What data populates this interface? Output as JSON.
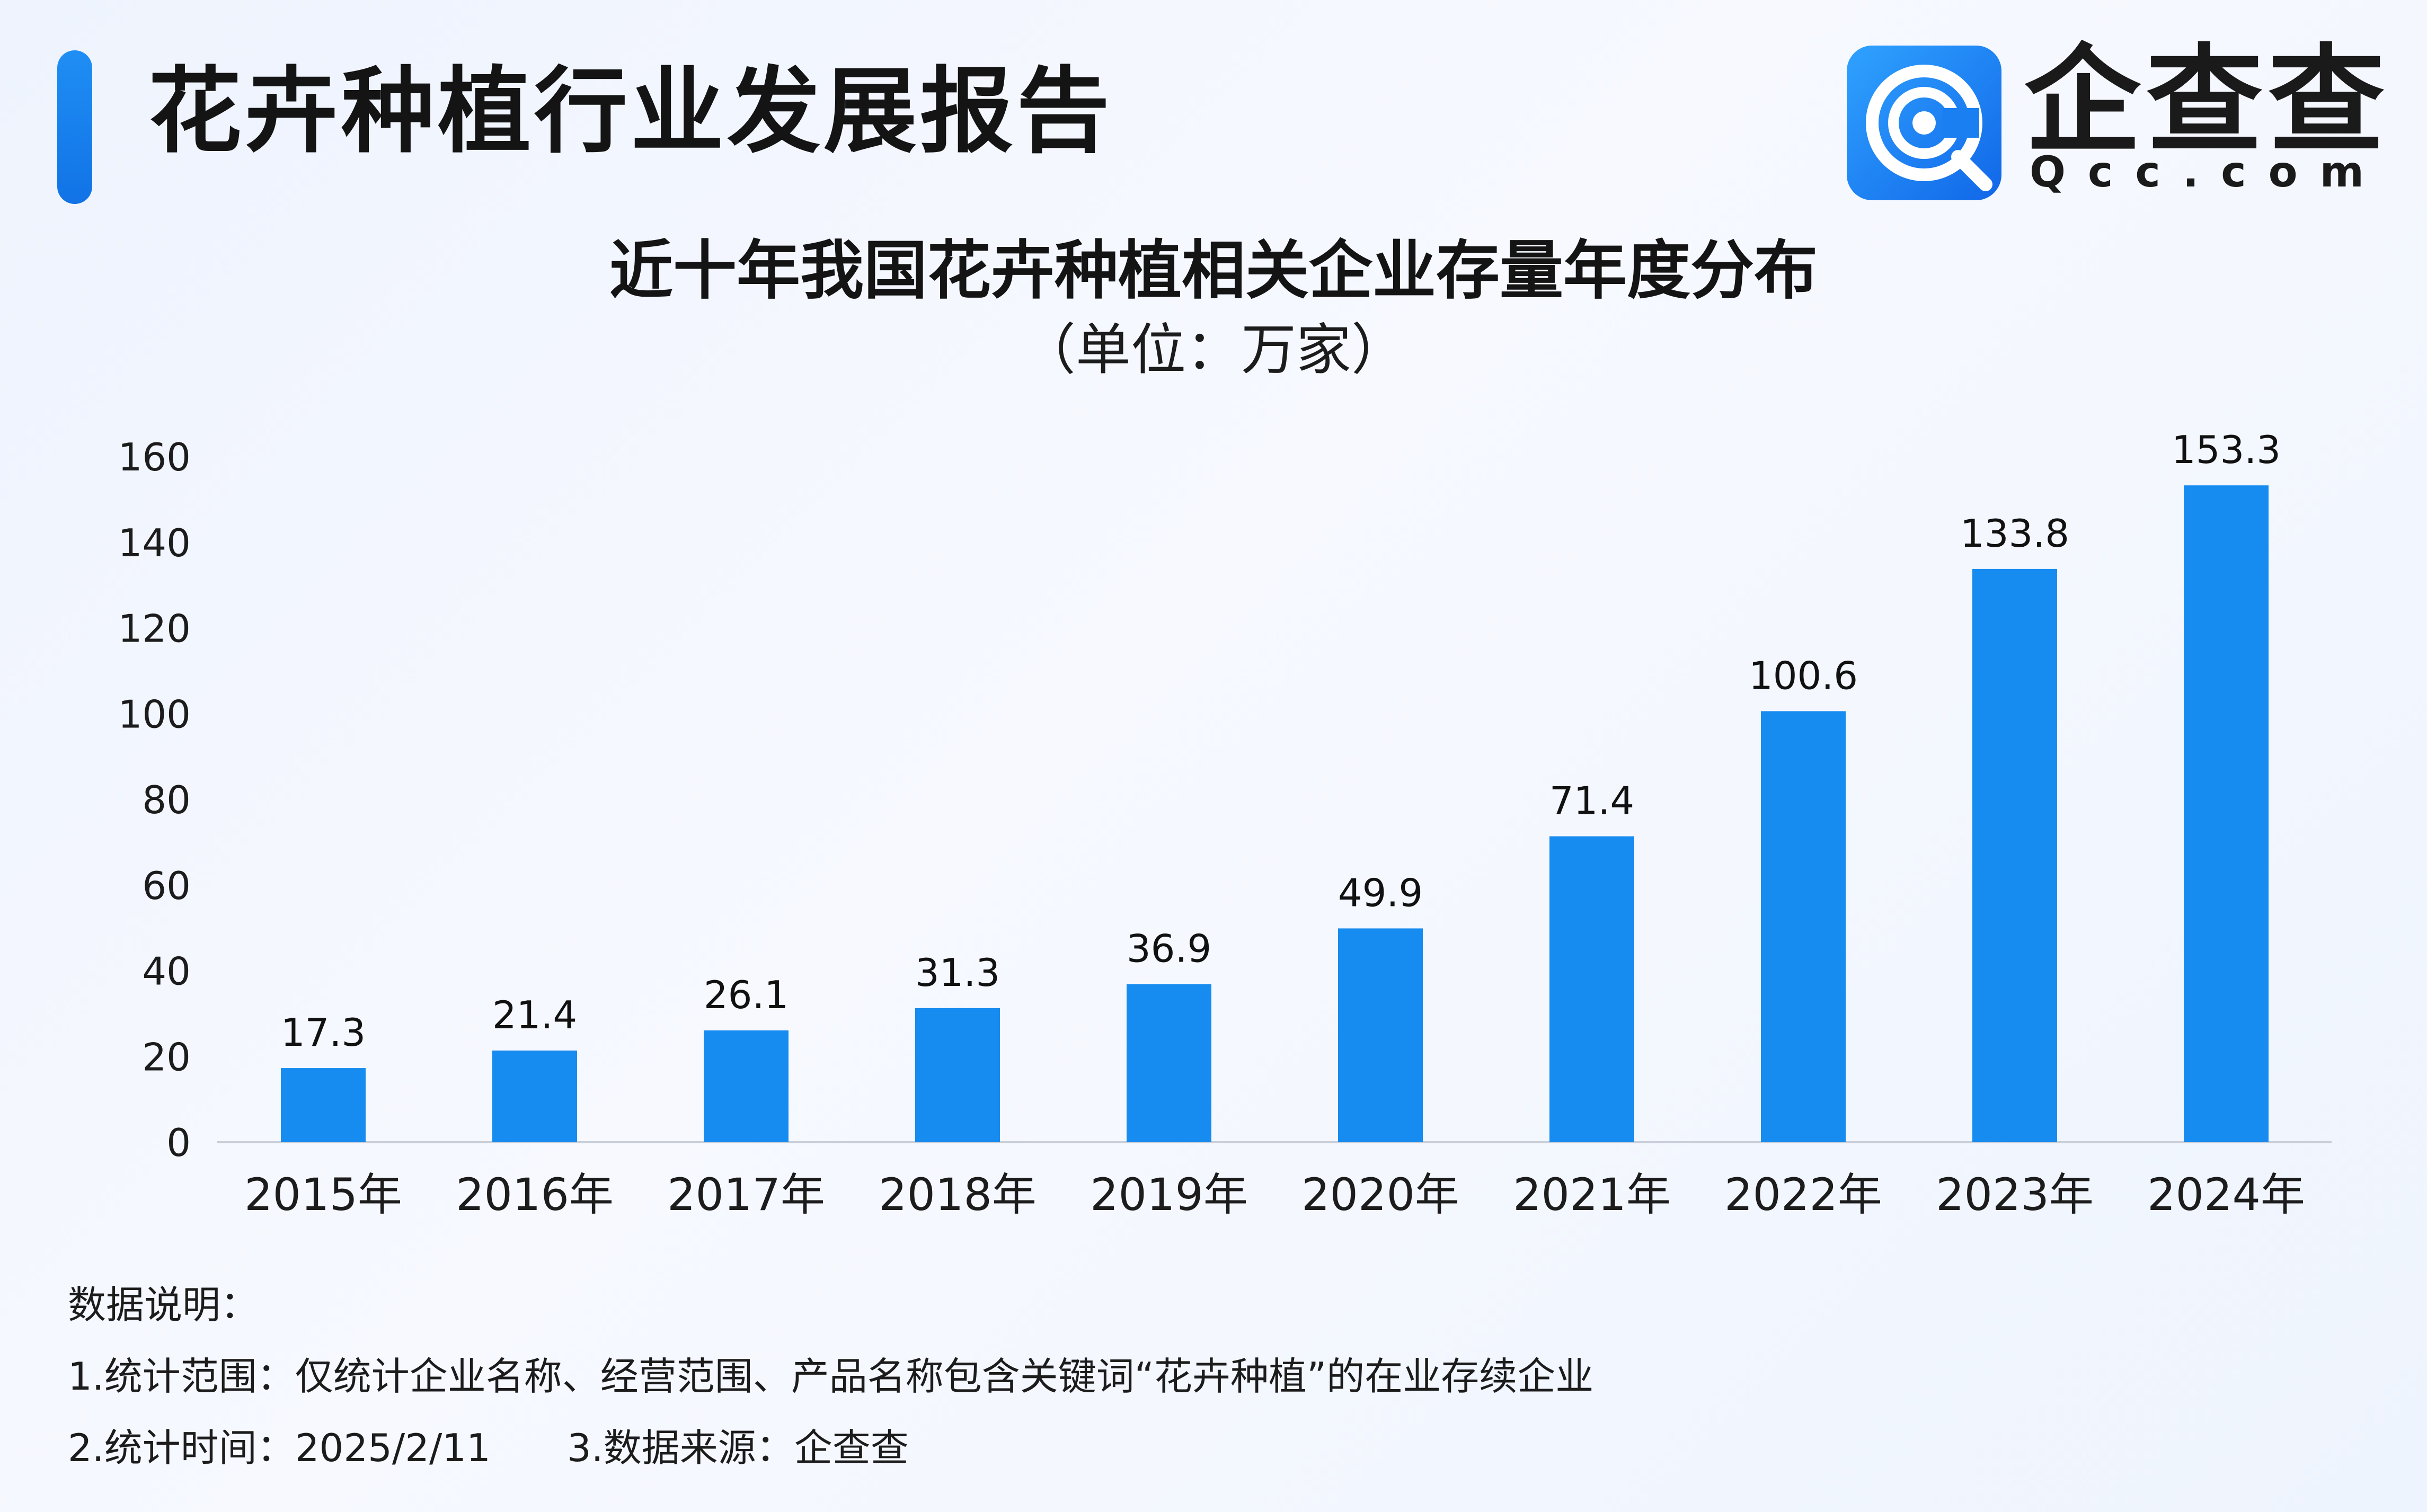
{
  "header": {
    "title": "花卉种植行业发展报告",
    "brand_name": "企查查",
    "brand_domain": "Qcc.com",
    "brand_color": "#1677f0"
  },
  "chart_data": {
    "type": "bar",
    "title": "近十年我国花卉种植相关企业存量年度分布",
    "subtitle": "（单位：万家）",
    "categories": [
      "2015年",
      "2016年",
      "2017年",
      "2018年",
      "2019年",
      "2020年",
      "2021年",
      "2022年",
      "2023年",
      "2024年"
    ],
    "values": [
      17.3,
      21.4,
      26.1,
      31.3,
      36.9,
      49.9,
      71.4,
      100.6,
      133.8,
      153.3
    ],
    "value_labels": [
      "17.3",
      "21.4",
      "26.1",
      "31.3",
      "36.9",
      "49.9",
      "71.4",
      "100.6",
      "133.8",
      "153.3"
    ],
    "ylim": [
      0,
      160
    ],
    "yticks": [
      0,
      20,
      40,
      60,
      80,
      100,
      120,
      140,
      160
    ],
    "grid": false,
    "legend": "none",
    "bar_color": "#168bf0"
  },
  "notes": {
    "header": "数据说明：",
    "scope": "1.统计范围：仅统计企业名称、经营范围、产品名称包含关键词“花卉种植”的在业存续企业",
    "time": "2.统计时间：2025/2/11",
    "source": "3.数据来源：企查查"
  }
}
